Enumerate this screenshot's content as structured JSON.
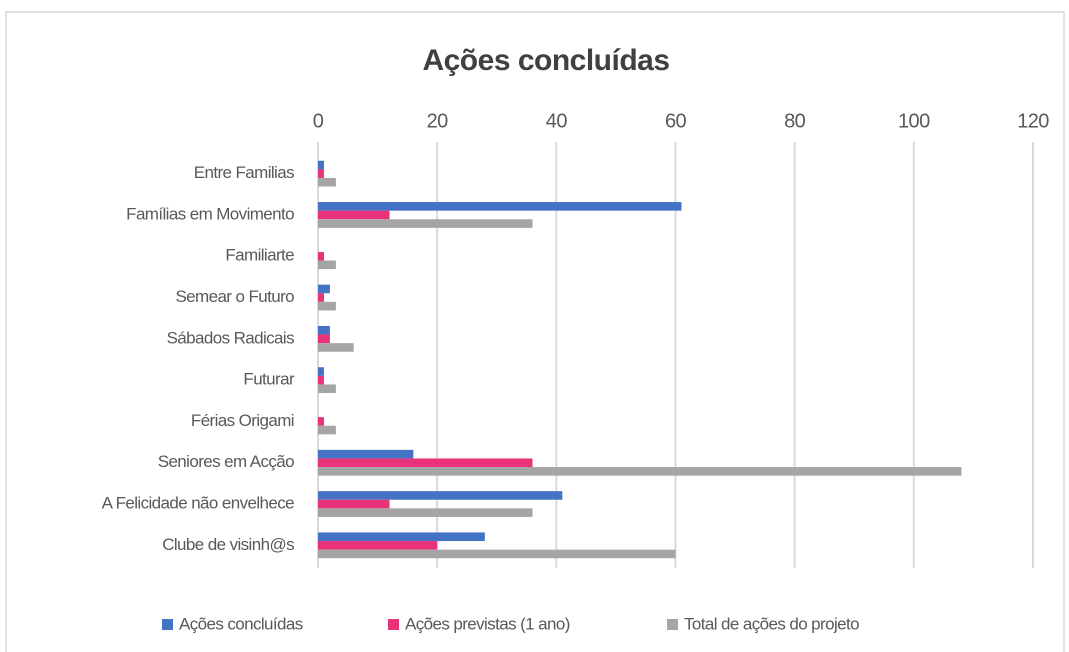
{
  "chart_data": {
    "type": "barh",
    "title": "Ações concluídas",
    "categories": [
      "Entre Familias",
      "Famílias em Movimento",
      "Familiarte",
      "Semear o Futuro",
      "Sábados Radicais",
      "Futurar",
      "Férias Origami",
      "Seniores em Acção",
      "A Felicidade não envelhece",
      "Clube de visinh@s"
    ],
    "series": [
      {
        "name": "Ações concluídas",
        "color": "#4472c4",
        "values": [
          1,
          61,
          0,
          2,
          2,
          1,
          0,
          16,
          41,
          28
        ]
      },
      {
        "name": "Ações previstas (1 ano)",
        "color": "#e8337a",
        "values": [
          1,
          12,
          1,
          1,
          2,
          1,
          1,
          36,
          12,
          20
        ]
      },
      {
        "name": "Total de ações do projeto",
        "color": "#a5a5a5",
        "values": [
          3,
          36,
          3,
          3,
          6,
          3,
          3,
          108,
          36,
          60
        ]
      }
    ],
    "xlim": [
      0,
      120
    ],
    "xticks": [
      0,
      20,
      40,
      60,
      80,
      100,
      120
    ],
    "grid": true,
    "legend": "bottom"
  }
}
